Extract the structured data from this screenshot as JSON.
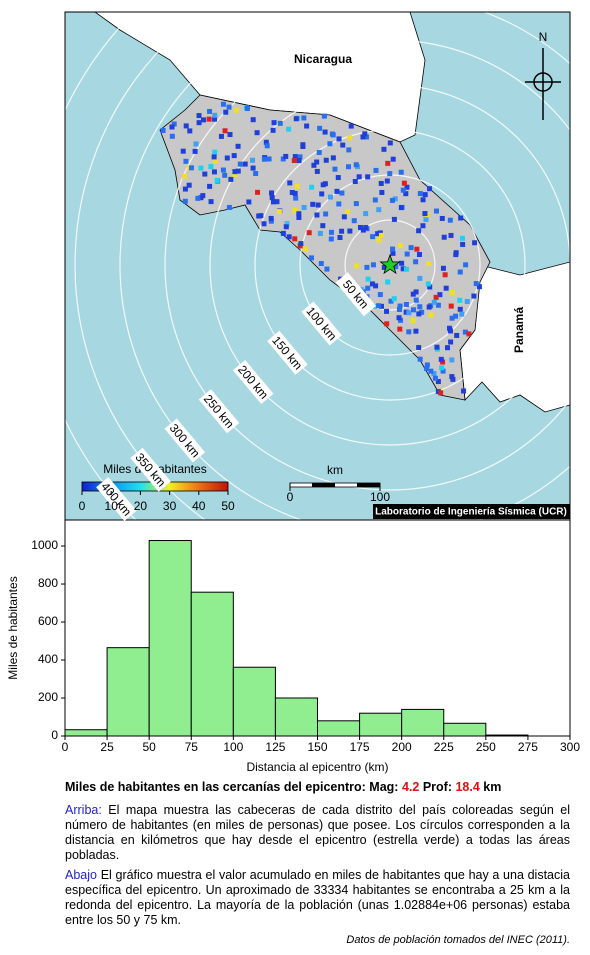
{
  "map": {
    "country_labels": [
      "Nicaragua",
      "Panamá"
    ],
    "north": "N",
    "ring_labels": [
      "50 km",
      "100 km",
      "150 km",
      "200 km",
      "250 km",
      "300 km",
      "350 km",
      "400 km"
    ],
    "colorbar_title": "Miles de habitantes",
    "colorbar_ticks": [
      0,
      10,
      20,
      30,
      40,
      50
    ],
    "scale_title": "km",
    "scale_ticks": [
      0,
      100
    ],
    "credit": "Laboratorio de Ingeniería Sísmica (UCR)"
  },
  "chart_data": {
    "type": "histogram",
    "xlabel": "Distancia al epicentro (km)",
    "ylabel": "Miles de habitantes",
    "bins": [
      0,
      25,
      50,
      75,
      100,
      125,
      150,
      175,
      200,
      225,
      250,
      275
    ],
    "values": [
      33,
      465,
      1029,
      757,
      362,
      200,
      80,
      120,
      140,
      67,
      5
    ],
    "color": "#90ee90",
    "xlim": [
      0,
      300
    ],
    "ylim": [
      0,
      1137
    ],
    "xticks": [
      0,
      25,
      50,
      75,
      100,
      125,
      150,
      175,
      200,
      225,
      250,
      275,
      300
    ],
    "yticks": [
      0,
      200,
      400,
      600,
      800,
      1000
    ]
  },
  "caption": {
    "lead": "Miles de habitantes en las cercanías del epicentro: Mag:",
    "mag": 4.2,
    "depth_label": "Prof:",
    "depth": 18.4,
    "unit": "km"
  },
  "paragraphs": [
    {
      "tag": "Arriba:",
      "text": "El mapa muestra las cabeceras de cada distrito del país coloreadas según el número de habitantes (en miles de personas) que posee.  Los círculos corresponden a la distancia en kilómetros que hay desde el epicentro (estrella verde) a todas las áreas pobladas."
    },
    {
      "tag": "Abajo",
      "text": "El gráfico muestra el valor acumulado en miles de habitantes que hay a una distacia específica del epicentro.  Un aproximado de 33334 habitantes se encontraba a 25 km a la redonda del epicentro.  La mayoría de la población (unas 1.02884e+06 personas) estaba entre los 50 y 75 km."
    }
  ],
  "footer": "Datos de población tomados del INEC (2011)."
}
